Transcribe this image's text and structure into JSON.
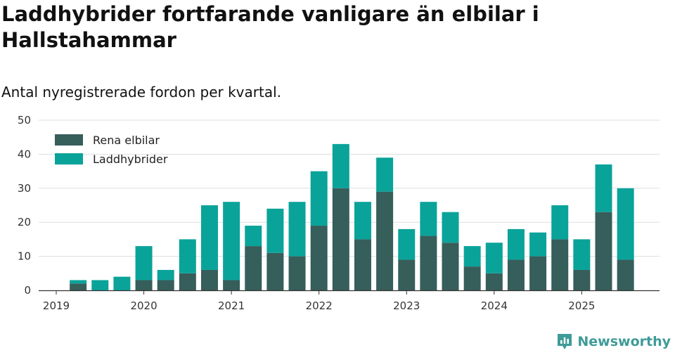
{
  "header": {
    "title": "Laddhybrider fortfarande vanligare än elbilar i Hallstahammar",
    "subtitle": "Antal nyregistrerade fordon per kvartal."
  },
  "brand": {
    "name": "Newsworthy"
  },
  "colors": {
    "electric": "#365e5b",
    "hybrid": "#0aa39a",
    "grid": "#dddddd",
    "axis": "#333333"
  },
  "chart_data": {
    "type": "bar",
    "stacked": true,
    "title": "Laddhybrider fortfarande vanligare än elbilar i Hallstahammar",
    "subtitle": "Antal nyregistrerade fordon per kvartal.",
    "xlabel": "",
    "ylabel": "",
    "ylim": [
      0,
      50
    ],
    "yticks": [
      0,
      10,
      20,
      30,
      40,
      50
    ],
    "xticks": [
      "2019",
      "2020",
      "2021",
      "2022",
      "2023",
      "2024",
      "2025"
    ],
    "legend_position": "top-left",
    "categories": [
      "2019 Q1",
      "2019 Q2",
      "2019 Q3",
      "2019 Q4",
      "2020 Q1",
      "2020 Q2",
      "2020 Q3",
      "2020 Q4",
      "2021 Q1",
      "2021 Q2",
      "2021 Q3",
      "2021 Q4",
      "2022 Q1",
      "2022 Q2",
      "2022 Q3",
      "2022 Q4",
      "2023 Q1",
      "2023 Q2",
      "2023 Q3",
      "2023 Q4",
      "2024 Q1",
      "2024 Q2",
      "2024 Q3",
      "2024 Q4",
      "2025 Q1",
      "2025 Q2",
      "2025 Q3"
    ],
    "series": [
      {
        "name": "Rena elbilar",
        "values": [
          0,
          2,
          0,
          0,
          3,
          3,
          5,
          6,
          3,
          13,
          11,
          10,
          19,
          30,
          15,
          29,
          9,
          16,
          14,
          7,
          5,
          9,
          10,
          15,
          6,
          23,
          9
        ]
      },
      {
        "name": "Laddhybrider",
        "values": [
          0,
          1,
          3,
          4,
          10,
          3,
          10,
          19,
          23,
          6,
          13,
          16,
          16,
          13,
          11,
          10,
          9,
          10,
          9,
          6,
          9,
          9,
          7,
          10,
          9,
          14,
          21
        ]
      }
    ]
  }
}
